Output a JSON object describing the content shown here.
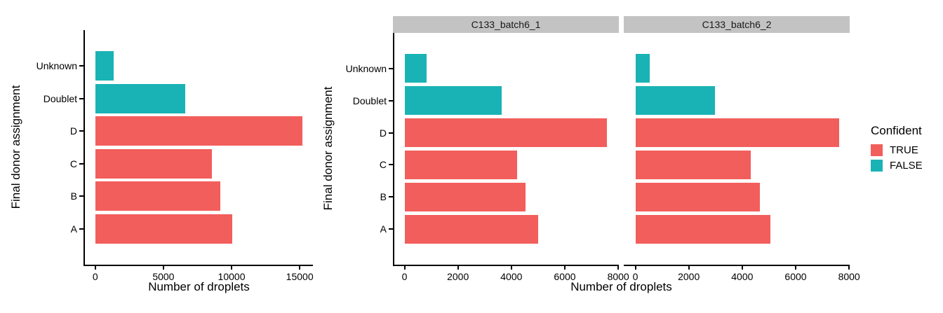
{
  "chart_data": {
    "type": "bar",
    "orientation": "horizontal",
    "title": "",
    "xlabel": "Number of droplets",
    "ylabel": "Final donor assignment",
    "grid": "off",
    "bar_width_fraction": 0.9,
    "categories_top_to_bottom": [
      "Unknown",
      "Doublet",
      "D",
      "C",
      "B",
      "A"
    ],
    "category_confident": {
      "Unknown": "FALSE",
      "Doublet": "FALSE",
      "D": "TRUE",
      "C": "TRUE",
      "B": "TRUE",
      "A": "TRUE"
    },
    "legend": {
      "title": "Confident",
      "position": "right",
      "entries": [
        {
          "label": "TRUE",
          "color": "#F25E5C"
        },
        {
          "label": "FALSE",
          "color": "#1AB3B5"
        }
      ]
    },
    "panels": [
      {
        "facet_label": "",
        "x_ticks": [
          0,
          5000,
          10000,
          15000
        ],
        "x_axis_max": 15210,
        "values": {
          "Unknown": 1375,
          "Doublet": 6600,
          "D": 15210,
          "C": 8540,
          "B": 9190,
          "A": 10070
        }
      },
      {
        "facet_label": "C133_batch6_1",
        "x_ticks": [
          0,
          2000,
          4000,
          6000,
          8000
        ],
        "x_axis_max": 7640,
        "values": {
          "Unknown": 830,
          "Doublet": 3630,
          "D": 7570,
          "C": 4220,
          "B": 4540,
          "A": 5010
        }
      },
      {
        "facet_label": "C133_batch6_2",
        "x_ticks": [
          0,
          2000,
          4000,
          6000,
          8000
        ],
        "x_axis_max": 7640,
        "values": {
          "Unknown": 545,
          "Doublet": 2970,
          "D": 7640,
          "C": 4320,
          "B": 4650,
          "A": 5060
        }
      }
    ],
    "colors": {
      "strip_background": "#C3C3C3",
      "axis": "#000000",
      "text": "#000000"
    }
  }
}
